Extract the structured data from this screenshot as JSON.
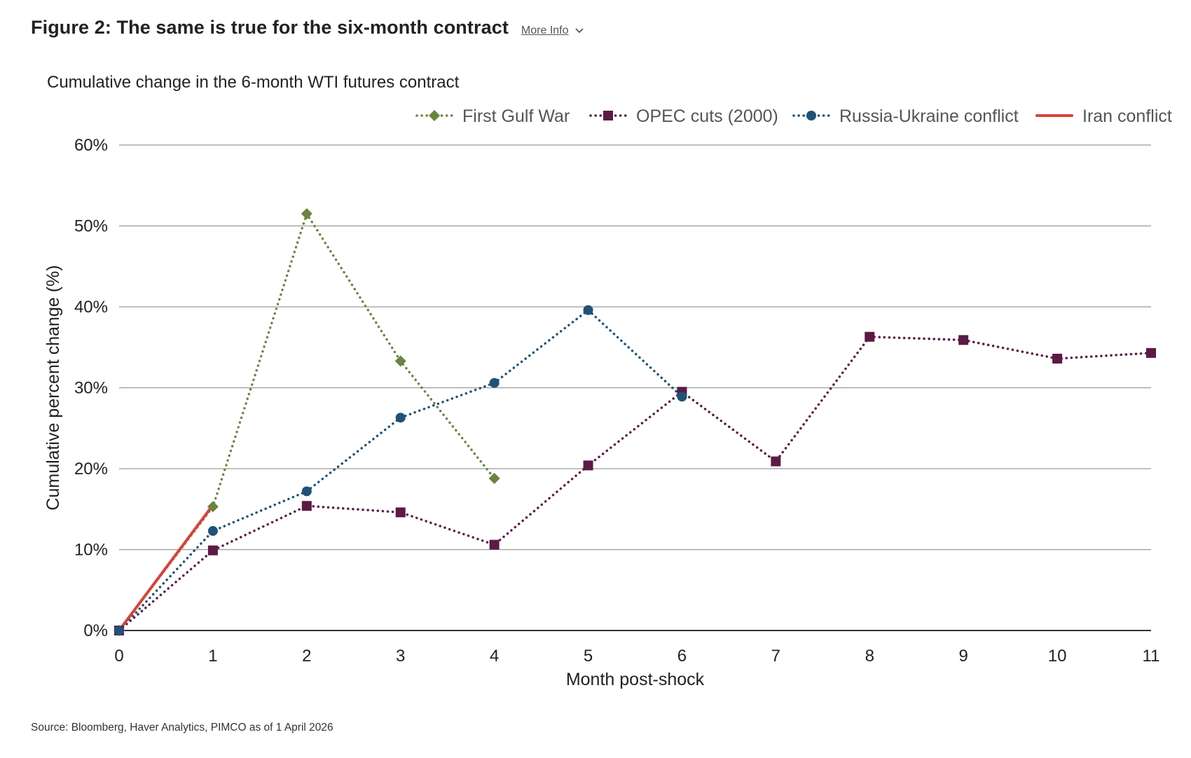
{
  "header": {
    "title": "Figure 2: The same is true for the six-month contract",
    "more_info_label": "More Info",
    "more_info_icon": "chevron-down-icon"
  },
  "source": "Source: Bloomberg, Haver Analytics, PIMCO as of 1 April 2026",
  "chart_data": {
    "type": "line",
    "title": "Cumulative change in the 6-month WTI futures contract",
    "xlabel": "Month post-shock",
    "ylabel": "Cumulative percent change (%)",
    "xlim": [
      0,
      11
    ],
    "ylim": [
      0,
      60
    ],
    "x_ticks": [
      0,
      1,
      2,
      3,
      4,
      5,
      6,
      7,
      8,
      9,
      10,
      11
    ],
    "y_ticks": [
      0,
      10,
      20,
      30,
      40,
      50,
      60
    ],
    "y_tick_labels": [
      "0%",
      "10%",
      "20%",
      "30%",
      "40%",
      "50%",
      "60%"
    ],
    "grid": "horizontal",
    "legend_position": "top-right",
    "series": [
      {
        "name": "First Gulf War",
        "color": "#6b8440",
        "marker": "diamond",
        "style": "dotted",
        "x": [
          0,
          1,
          2,
          3,
          4
        ],
        "y": [
          0,
          15.3,
          51.5,
          33.3,
          18.8
        ]
      },
      {
        "name": "OPEC cuts (2000)",
        "color": "#5c1a45",
        "marker": "square",
        "style": "dotted",
        "x": [
          0,
          1,
          2,
          3,
          4,
          5,
          6,
          7,
          8,
          9,
          10,
          11
        ],
        "y": [
          0,
          9.9,
          15.4,
          14.6,
          10.6,
          20.4,
          29.5,
          20.9,
          36.3,
          35.9,
          33.6,
          34.3
        ]
      },
      {
        "name": "Russia-Ukraine conflict",
        "color": "#1f5278",
        "marker": "circle",
        "style": "dotted",
        "x": [
          0,
          1,
          2,
          3,
          4,
          5,
          6
        ],
        "y": [
          0,
          12.3,
          17.2,
          26.3,
          30.6,
          39.6,
          28.9
        ]
      },
      {
        "name": "Iran conflict",
        "color": "#d9423a",
        "marker": "none",
        "style": "solid",
        "x": [
          0,
          1
        ],
        "y": [
          0,
          15.5
        ]
      }
    ]
  }
}
